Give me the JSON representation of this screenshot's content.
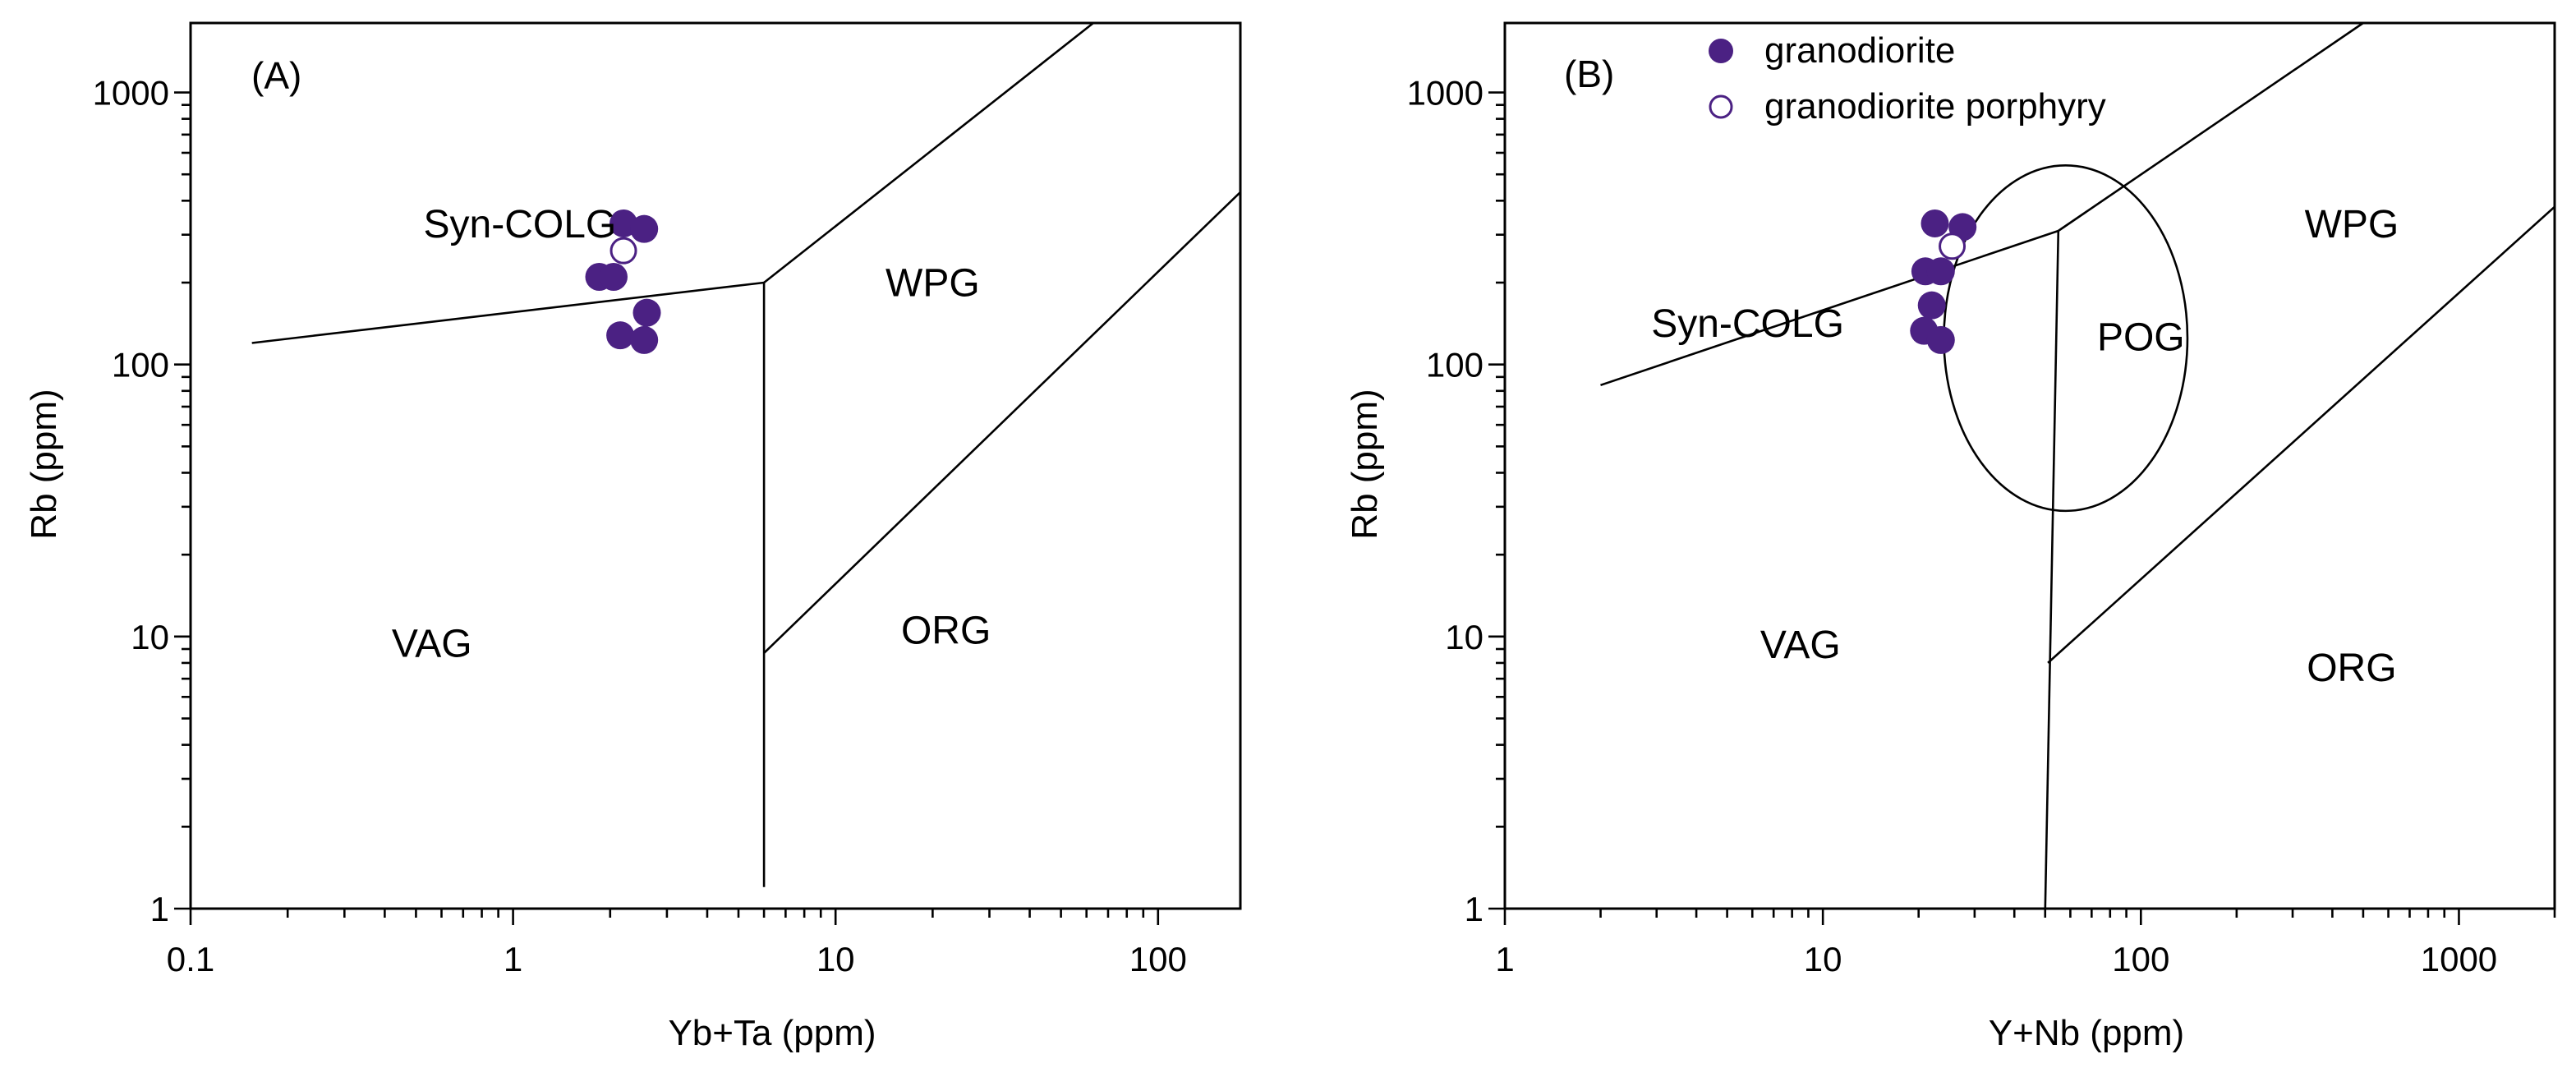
{
  "colors": {
    "marker_fill": "#4b2183",
    "open_marker_fill": "#ffffff",
    "open_marker_stroke": "#4b2183",
    "line": "#000000"
  },
  "legend": {
    "entries": [
      {
        "label": "granodiorite",
        "style": "filled"
      },
      {
        "label": "granodiorite porphyry",
        "style": "open"
      }
    ]
  },
  "chart_data": [
    {
      "type": "scatter",
      "panel_label": "(A)",
      "xlabel": "Yb+Ta  (ppm)",
      "ylabel": "Rb (ppm)",
      "xscale": "log",
      "yscale": "log",
      "xlim": [
        0.1,
        180
      ],
      "ylim": [
        1,
        1800
      ],
      "x_ticks": [
        {
          "value": 0.1,
          "label": "0.1"
        },
        {
          "value": 1,
          "label": "1"
        },
        {
          "value": 10,
          "label": "10"
        },
        {
          "value": 100,
          "label": "100"
        }
      ],
      "y_ticks": [
        {
          "value": 1,
          "label": "1"
        },
        {
          "value": 10,
          "label": "10"
        },
        {
          "value": 100,
          "label": "100"
        },
        {
          "value": 1000,
          "label": "1000"
        }
      ],
      "fields": [
        {
          "label": "Syn-COLG",
          "x": 1.05,
          "y": 320
        },
        {
          "label": "WPG",
          "x": 20,
          "y": 195
        },
        {
          "label": "VAG",
          "x": 0.56,
          "y": 9.2
        },
        {
          "label": "ORG",
          "x": 22,
          "y": 10.3
        }
      ],
      "boundaries": [
        {
          "points": [
            [
              0.155,
              120
            ],
            [
              6,
              200
            ]
          ]
        },
        {
          "points": [
            [
              6,
              200
            ],
            [
              63,
              1800
            ]
          ]
        },
        {
          "points": [
            [
              6,
              200
            ],
            [
              6,
              1.2
            ]
          ]
        },
        {
          "points": [
            [
              6,
              8.7
            ],
            [
              180,
              430
            ]
          ]
        }
      ],
      "series": [
        {
          "name": "granodiorite",
          "style": "filled",
          "points": [
            [
              2.2,
              330
            ],
            [
              2.55,
              315
            ],
            [
              1.85,
              210
            ],
            [
              2.05,
              210
            ],
            [
              2.6,
              155
            ],
            [
              2.15,
              128
            ],
            [
              2.55,
              123
            ]
          ]
        },
        {
          "name": "granodiorite porphyry",
          "style": "open",
          "points": [
            [
              2.2,
              262
            ]
          ]
        }
      ]
    },
    {
      "type": "scatter",
      "panel_label": "(B)",
      "xlabel": "Y+Nb  (ppm)",
      "ylabel": "Rb (ppm)",
      "xscale": "log",
      "yscale": "log",
      "xlim": [
        1,
        2000
      ],
      "ylim": [
        1,
        1800
      ],
      "x_ticks": [
        {
          "value": 1,
          "label": "1"
        },
        {
          "value": 10,
          "label": "10"
        },
        {
          "value": 100,
          "label": "100"
        },
        {
          "value": 1000,
          "label": "1000"
        }
      ],
      "y_ticks": [
        {
          "value": 1,
          "label": "1"
        },
        {
          "value": 10,
          "label": "10"
        },
        {
          "value": 100,
          "label": "100"
        },
        {
          "value": 1000,
          "label": "1000"
        }
      ],
      "fields": [
        {
          "label": "Syn-COLG",
          "x": 5.8,
          "y": 138
        },
        {
          "label": "WPG",
          "x": 460,
          "y": 320
        },
        {
          "label": "POG",
          "x": 100,
          "y": 123
        },
        {
          "label": "VAG",
          "x": 8.5,
          "y": 9.1
        },
        {
          "label": "ORG",
          "x": 460,
          "y": 7.5
        }
      ],
      "boundaries": [
        {
          "points": [
            [
              2,
              84
            ],
            [
              55,
              310
            ]
          ]
        },
        {
          "points": [
            [
              55,
              310
            ],
            [
              500,
              1800
            ]
          ]
        },
        {
          "points": [
            [
              55,
              310
            ],
            [
              50,
              1
            ]
          ]
        },
        {
          "points": [
            [
              51,
              8
            ],
            [
              2000,
              380
            ]
          ]
        }
      ],
      "circle": {
        "center": [
          58,
          125
        ],
        "x_range": [
          24,
          140
        ],
        "y_range": [
          29,
          540
        ]
      },
      "series": [
        {
          "name": "granodiorite",
          "style": "filled",
          "points": [
            [
              22.5,
              330
            ],
            [
              27.5,
              320
            ],
            [
              21,
              220
            ],
            [
              23.5,
              220
            ],
            [
              22,
              165
            ],
            [
              20.8,
              133
            ],
            [
              23.5,
              123
            ]
          ]
        },
        {
          "name": "granodiorite porphyry",
          "style": "open",
          "points": [
            [
              25.5,
              272
            ]
          ]
        }
      ]
    }
  ]
}
